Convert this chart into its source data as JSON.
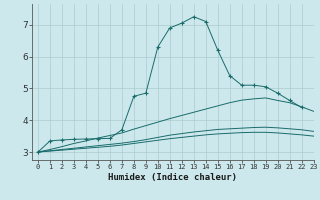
{
  "xlabel": "Humidex (Indice chaleur)",
  "background_color": "#cce8ec",
  "grid_color": "#aacccc",
  "line_color": "#1a6b6b",
  "xlim": [
    -0.5,
    23
  ],
  "ylim": [
    2.75,
    7.65
  ],
  "x_ticks": [
    0,
    1,
    2,
    3,
    4,
    5,
    6,
    7,
    8,
    9,
    10,
    11,
    12,
    13,
    14,
    15,
    16,
    17,
    18,
    19,
    20,
    21,
    22,
    23
  ],
  "y_ticks": [
    3,
    4,
    5,
    6,
    7
  ],
  "series": [
    {
      "x": [
        0,
        1,
        2,
        3,
        4,
        5,
        6,
        7,
        8,
        9,
        10,
        11,
        12,
        13,
        14,
        15,
        16,
        17,
        18,
        19,
        20,
        21,
        22
      ],
      "y": [
        3.0,
        3.35,
        3.38,
        3.4,
        3.41,
        3.42,
        3.43,
        3.7,
        4.75,
        4.85,
        6.3,
        6.9,
        7.05,
        7.25,
        7.1,
        6.2,
        5.4,
        5.1,
        5.1,
        5.05,
        4.85,
        4.62,
        4.4
      ],
      "marker": "+"
    },
    {
      "x": [
        0,
        1,
        2,
        3,
        4,
        5,
        6,
        7,
        8,
        9,
        10,
        11,
        12,
        13,
        14,
        15,
        16,
        17,
        18,
        19,
        20,
        21,
        22,
        23
      ],
      "y": [
        3.0,
        3.08,
        3.17,
        3.27,
        3.35,
        3.44,
        3.52,
        3.6,
        3.72,
        3.83,
        3.94,
        4.05,
        4.15,
        4.25,
        4.35,
        4.45,
        4.55,
        4.63,
        4.67,
        4.7,
        4.62,
        4.55,
        4.42,
        4.28
      ],
      "marker": null
    },
    {
      "x": [
        0,
        1,
        2,
        3,
        4,
        5,
        6,
        7,
        8,
        9,
        10,
        11,
        12,
        13,
        14,
        15,
        16,
        17,
        18,
        19,
        20,
        21,
        22,
        23
      ],
      "y": [
        3.0,
        3.04,
        3.08,
        3.12,
        3.16,
        3.2,
        3.24,
        3.28,
        3.33,
        3.39,
        3.46,
        3.53,
        3.58,
        3.63,
        3.67,
        3.71,
        3.73,
        3.75,
        3.77,
        3.78,
        3.76,
        3.73,
        3.7,
        3.65
      ],
      "marker": null
    },
    {
      "x": [
        0,
        1,
        2,
        3,
        4,
        5,
        6,
        7,
        8,
        9,
        10,
        11,
        12,
        13,
        14,
        15,
        16,
        17,
        18,
        19,
        20,
        21,
        22,
        23
      ],
      "y": [
        3.0,
        3.03,
        3.06,
        3.09,
        3.12,
        3.15,
        3.18,
        3.22,
        3.27,
        3.32,
        3.37,
        3.42,
        3.46,
        3.5,
        3.54,
        3.57,
        3.59,
        3.61,
        3.62,
        3.62,
        3.6,
        3.57,
        3.54,
        3.5
      ],
      "marker": null
    }
  ]
}
